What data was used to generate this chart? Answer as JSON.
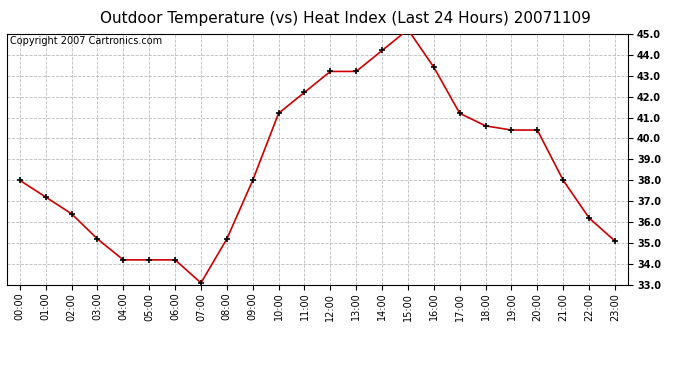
{
  "title": "Outdoor Temperature (vs) Heat Index (Last 24 Hours) 20071109",
  "copyright_text": "Copyright 2007 Cartronics.com",
  "x_labels": [
    "00:00",
    "01:00",
    "02:00",
    "03:00",
    "04:00",
    "05:00",
    "06:00",
    "07:00",
    "08:00",
    "09:00",
    "10:00",
    "11:00",
    "12:00",
    "13:00",
    "14:00",
    "15:00",
    "16:00",
    "17:00",
    "18:00",
    "19:00",
    "20:00",
    "21:00",
    "22:00",
    "23:00"
  ],
  "y_values": [
    38.0,
    37.2,
    36.4,
    35.2,
    34.2,
    34.2,
    34.2,
    33.1,
    35.2,
    38.0,
    41.2,
    42.2,
    43.2,
    43.2,
    44.2,
    45.2,
    43.4,
    41.2,
    40.6,
    40.4,
    40.4,
    38.0,
    36.2,
    35.1
  ],
  "line_color": "#cc0000",
  "marker": "+",
  "marker_color": "#000000",
  "ylim_min": 33.0,
  "ylim_max": 45.0,
  "ytick_step": 1.0,
  "background_color": "#ffffff",
  "grid_color": "#bbbbbb",
  "title_fontsize": 11,
  "copyright_fontsize": 7,
  "tick_fontsize": 7
}
